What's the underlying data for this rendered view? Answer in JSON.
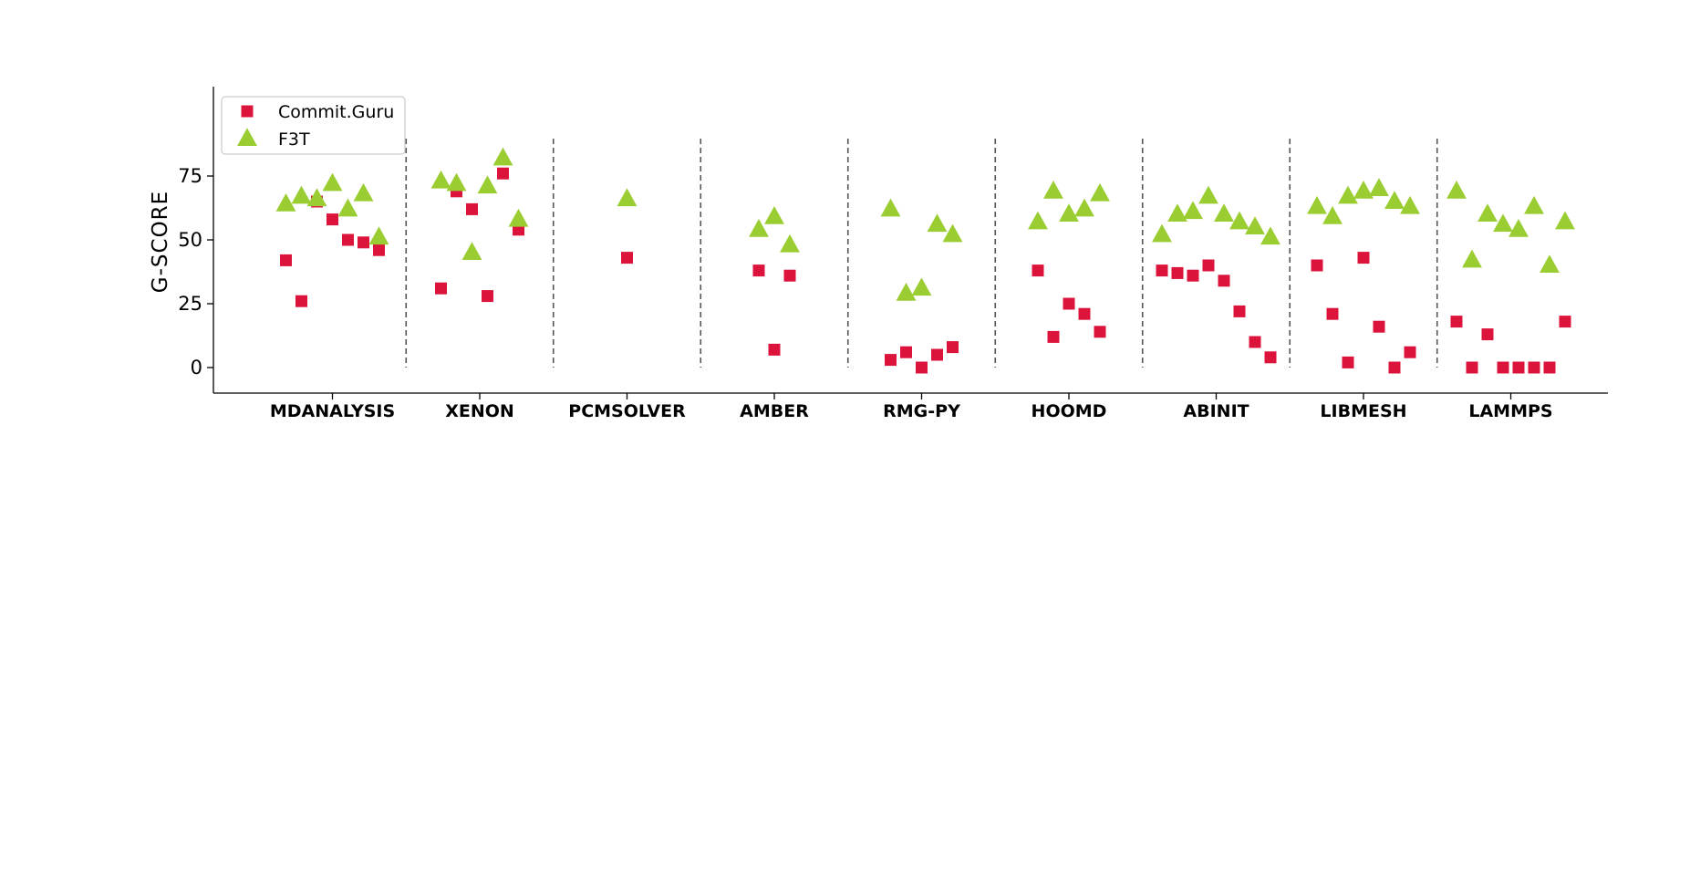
{
  "chart_data": {
    "type": "scatter",
    "title": "",
    "xlabel": "",
    "ylabel": "G-SCORE",
    "ylim": [
      -10,
      110
    ],
    "yticks": [
      0,
      25,
      50,
      75
    ],
    "grid": false,
    "legend_position": "top-left",
    "categories": [
      "MDANALYSIS",
      "XENON",
      "PCMSOLVER",
      "AMBER",
      "RMG-PY",
      "HOOMD",
      "ABINIT",
      "LIBMESH",
      "LAMMPS"
    ],
    "series": [
      {
        "name": "Commit.Guru",
        "marker": "square",
        "color": "#dc143c",
        "values": [
          [
            42,
            26,
            65,
            58,
            50,
            49,
            46
          ],
          [
            31,
            69,
            62,
            28,
            76,
            54
          ],
          [
            43
          ],
          [
            38,
            7,
            36
          ],
          [
            3,
            6,
            0,
            5,
            8
          ],
          [
            38,
            12,
            25,
            21,
            14
          ],
          [
            38,
            37,
            36,
            40,
            34,
            22,
            10,
            4
          ],
          [
            40,
            21,
            2,
            43,
            16,
            0,
            6
          ],
          [
            18,
            0,
            13,
            0,
            0,
            0,
            0,
            18
          ]
        ]
      },
      {
        "name": "F3T",
        "marker": "triangle",
        "color": "#9acd32",
        "values": [
          [
            64,
            67,
            66,
            72,
            62,
            68,
            51
          ],
          [
            73,
            72,
            45,
            71,
            82,
            58
          ],
          [
            66
          ],
          [
            54,
            59,
            48
          ],
          [
            62,
            29,
            31,
            56,
            52
          ],
          [
            57,
            69,
            60,
            62,
            68
          ],
          [
            52,
            60,
            61,
            67,
            60,
            57,
            55,
            51
          ],
          [
            63,
            59,
            67,
            69,
            70,
            65,
            63
          ],
          [
            69,
            42,
            60,
            56,
            54,
            63,
            40,
            57
          ]
        ]
      }
    ]
  }
}
